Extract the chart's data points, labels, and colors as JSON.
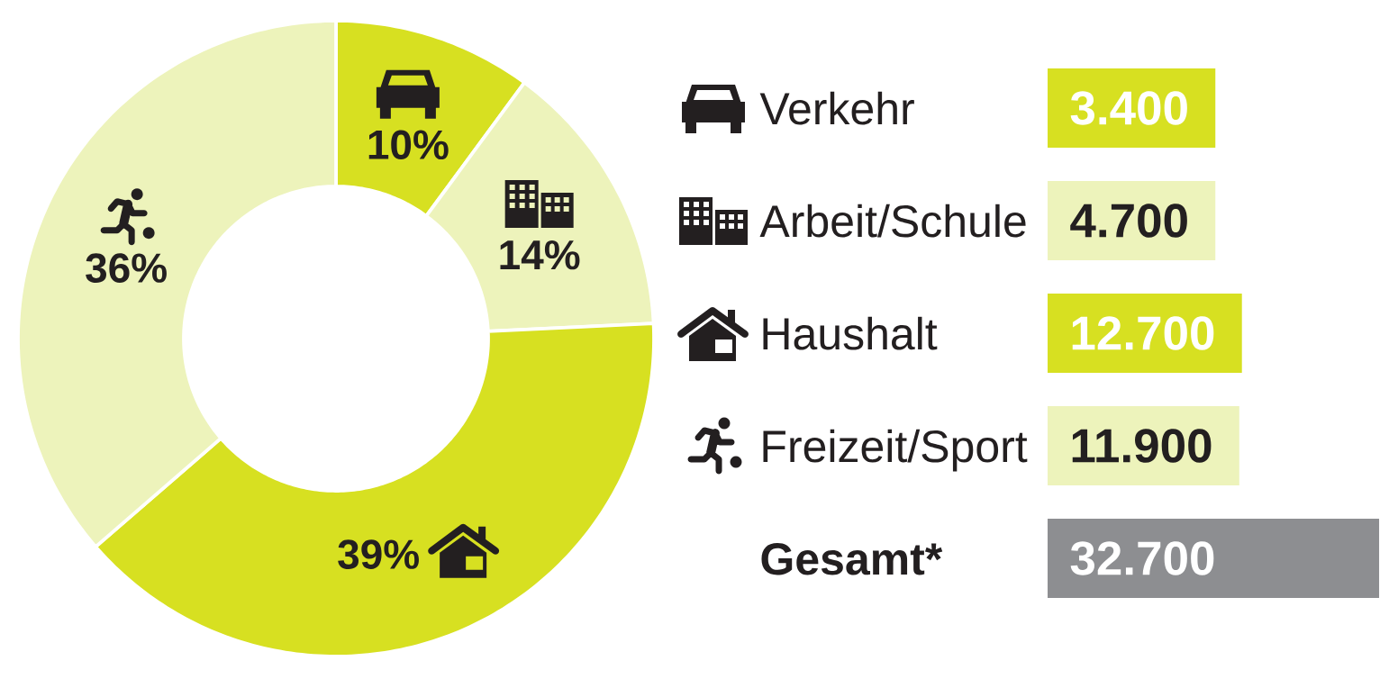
{
  "chart_data": [
    {
      "type": "donut",
      "categories": [
        null,
        null,
        null,
        null
      ],
      "values": [
        10,
        14,
        39,
        36
      ],
      "value_labels": [
        "10%",
        "14%",
        "39%",
        "36%"
      ],
      "colors": [
        "#d7e021",
        "#edf3bb",
        "#d7e021",
        "#edf3bb"
      ]
    },
    {
      "type": "other",
      "categories": [
        "Verkehr",
        "Arbeit/Schule",
        "Haushalt",
        "Freizeit/Sport",
        "Gesamt*"
      ],
      "values": [
        3400,
        4700,
        12700,
        11900,
        32700
      ],
      "value_labels": [
        "3.400",
        "4.700",
        "12.700",
        "11.900",
        "32.700"
      ],
      "colors": [
        "#d7e021",
        "#edf3bb",
        "#d7e021",
        "#edf3bb",
        "#8d8e91"
      ]
    }
  ]
}
